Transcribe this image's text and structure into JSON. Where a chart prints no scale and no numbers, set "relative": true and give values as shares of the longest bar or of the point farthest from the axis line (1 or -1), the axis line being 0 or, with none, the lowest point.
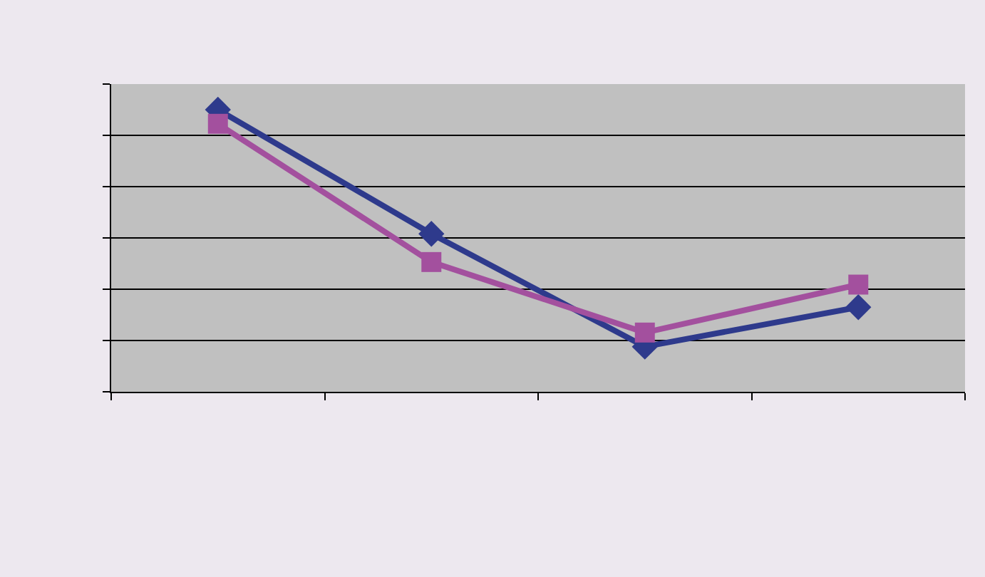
{
  "chart_data": {
    "type": "line",
    "relative": true,
    "categories": [
      null,
      null,
      null,
      null
    ],
    "series": [
      {
        "color": "#2e3a8c",
        "marker": "diamond",
        "values": [
          1,
          0.56,
          0.16,
          0.3
        ]
      },
      {
        "color": "#a3509e",
        "marker": "square",
        "values": [
          0.95,
          0.46,
          0.21,
          0.38
        ]
      }
    ],
    "grid": "y",
    "line_style": "solid"
  }
}
